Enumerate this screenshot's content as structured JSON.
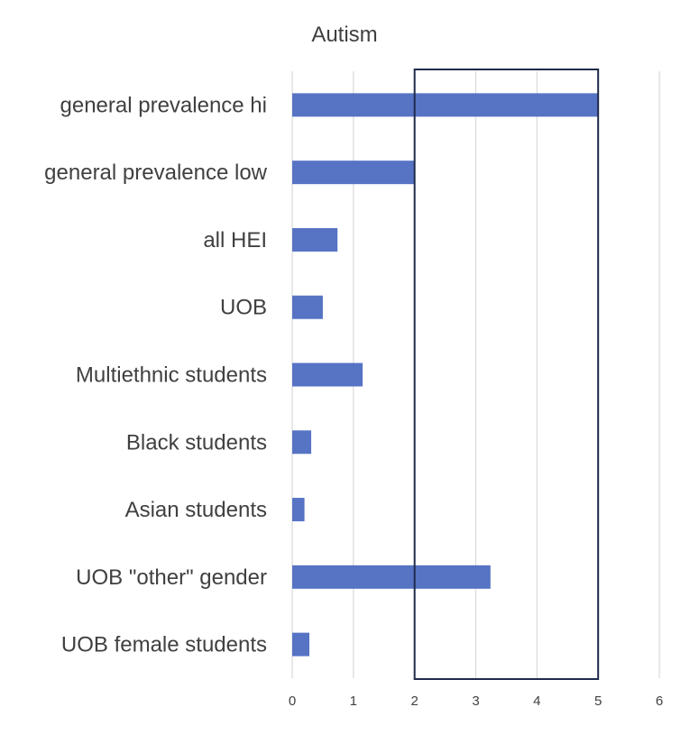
{
  "chart_data": {
    "type": "bar",
    "orientation": "horizontal",
    "title": "Autism",
    "xlabel": "",
    "ylabel": "",
    "xlim": [
      0,
      6
    ],
    "x_ticks": [
      0,
      1,
      2,
      3,
      4,
      5,
      6
    ],
    "grid": true,
    "legend": "none",
    "categories": [
      "general prevalence hi",
      "general prevalence low",
      "all HEI",
      "UOB",
      "Multiethnic students",
      "Black students",
      "Asian students",
      "UOB \"other\" gender",
      "UOB female students"
    ],
    "values": [
      5.0,
      2.0,
      0.74,
      0.5,
      1.15,
      0.31,
      0.2,
      3.24,
      0.28
    ],
    "highlight_range": [
      2,
      5
    ],
    "colors": {
      "bar": "#5673c4",
      "highlight_box": "#1f2b4a",
      "grid": "#d9d9d9",
      "text": "#404040"
    }
  }
}
